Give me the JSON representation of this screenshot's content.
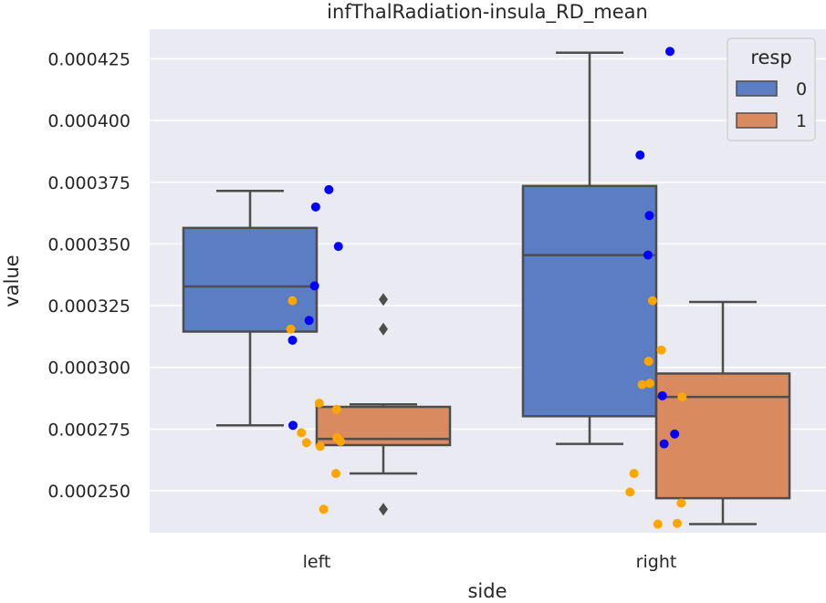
{
  "chart_data": {
    "type": "box",
    "title": "infThalRadiation-insula_RD_mean",
    "xlabel": "side",
    "ylabel": "value",
    "categories": [
      "left",
      "right"
    ],
    "ylim": [
      0.000233,
      0.000437
    ],
    "yticks": [
      "0.000250",
      "0.000275",
      "0.000300",
      "0.000325",
      "0.000350",
      "0.000375",
      "0.000400",
      "0.000425"
    ],
    "yticks_values": [
      0.00025,
      0.000275,
      0.0003,
      0.000325,
      0.00035,
      0.000375,
      0.0004,
      0.000425
    ],
    "grid": true,
    "legend": {
      "title": "resp",
      "position": "top-right",
      "entries": [
        "0",
        "1"
      ]
    },
    "series": [
      {
        "name": "0",
        "box_color": "#5a7dc4",
        "point_color": "#0000ff",
        "boxes": [
          {
            "category": "left",
            "whisker_low": 0.0002765,
            "q1": 0.0003145,
            "median": 0.0003328,
            "q3": 0.0003565,
            "whisker_high": 0.0003715,
            "outliers": []
          },
          {
            "category": "right",
            "whisker_low": 0.000269,
            "q1": 0.0002802,
            "median": 0.0003455,
            "q3": 0.0003735,
            "whisker_high": 0.0004275,
            "outliers": []
          }
        ],
        "points": [
          {
            "category": "left",
            "values": [
              0.000372,
              0.000365,
              0.000349,
              0.000333,
              0.000319,
              0.000311,
              0.0002765
            ]
          },
          {
            "category": "right",
            "values": [
              0.000428,
              0.000386,
              0.0003615,
              0.0003455,
              0.0002885,
              0.000273,
              0.000269
            ]
          }
        ]
      },
      {
        "name": "1",
        "box_color": "#d98a5e",
        "point_color": "#ffa500",
        "boxes": [
          {
            "category": "left",
            "whisker_low": 0.000257,
            "q1": 0.0002685,
            "median": 0.000271,
            "q3": 0.000284,
            "whisker_high": 0.000285,
            "outliers": [
              0.0003275,
              0.0003155,
              0.0002425
            ]
          },
          {
            "category": "right",
            "whisker_low": 0.0002365,
            "q1": 0.000247,
            "median": 0.000288,
            "q3": 0.0002975,
            "whisker_high": 0.0003265,
            "outliers": []
          }
        ],
        "points": [
          {
            "category": "left",
            "values": [
              0.000327,
              0.0003155,
              0.0002855,
              0.000283,
              0.0002735,
              0.0002715,
              0.00027,
              0.0002695,
              0.000268,
              0.000257,
              0.0002425
            ]
          },
          {
            "category": "right",
            "values": [
              0.000327,
              0.000307,
              0.0003025,
              0.0002935,
              0.000293,
              0.000288,
              0.000257,
              0.0002495,
              0.000245,
              0.0002368,
              0.0002365
            ]
          }
        ]
      }
    ]
  }
}
